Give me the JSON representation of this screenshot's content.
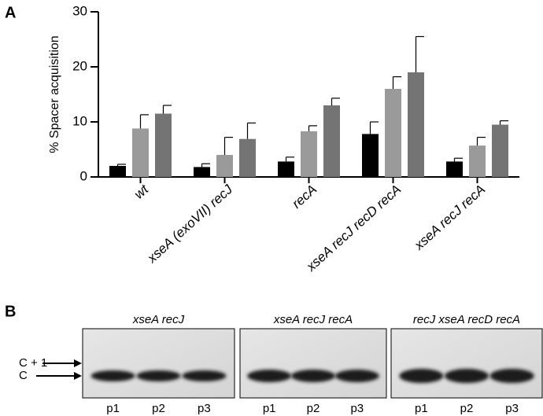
{
  "chart_data": {
    "type": "bar",
    "panel_label": "A",
    "ylabel": "% Spacer acquisition",
    "categories": [
      "wt",
      "xseA (exoVII) recJ",
      "recA",
      "xseA recJ recD recA",
      "xseA recJ recA"
    ],
    "series": [
      {
        "color": "#000000",
        "values": [
          2.0,
          1.8,
          2.8,
          7.8,
          2.8
        ],
        "errors": [
          0.3,
          0.6,
          0.8,
          2.2,
          0.6
        ]
      },
      {
        "color": "#9a9a9a",
        "values": [
          8.8,
          4.0,
          8.3,
          16.0,
          5.7
        ],
        "errors": [
          2.5,
          3.2,
          1.0,
          2.2,
          1.5
        ]
      },
      {
        "color": "#747474",
        "values": [
          11.5,
          6.9,
          13.0,
          19.0,
          9.5
        ],
        "errors": [
          1.5,
          2.9,
          1.3,
          6.5,
          0.7
        ]
      }
    ],
    "ylim": [
      0,
      30
    ],
    "yticks": [
      0,
      10,
      20,
      30
    ]
  },
  "gel_panel": {
    "panel_label": "B",
    "markers": [
      "C + 1",
      "C"
    ],
    "gels": [
      {
        "title": "xseA recJ",
        "lanes": [
          "p1",
          "p2",
          "p3"
        ]
      },
      {
        "title": "xseA recJ recA",
        "lanes": [
          "p1",
          "p2",
          "p3"
        ]
      },
      {
        "title": "recJ xseA recD recA",
        "lanes": [
          "p1",
          "p2",
          "p3"
        ]
      }
    ]
  }
}
